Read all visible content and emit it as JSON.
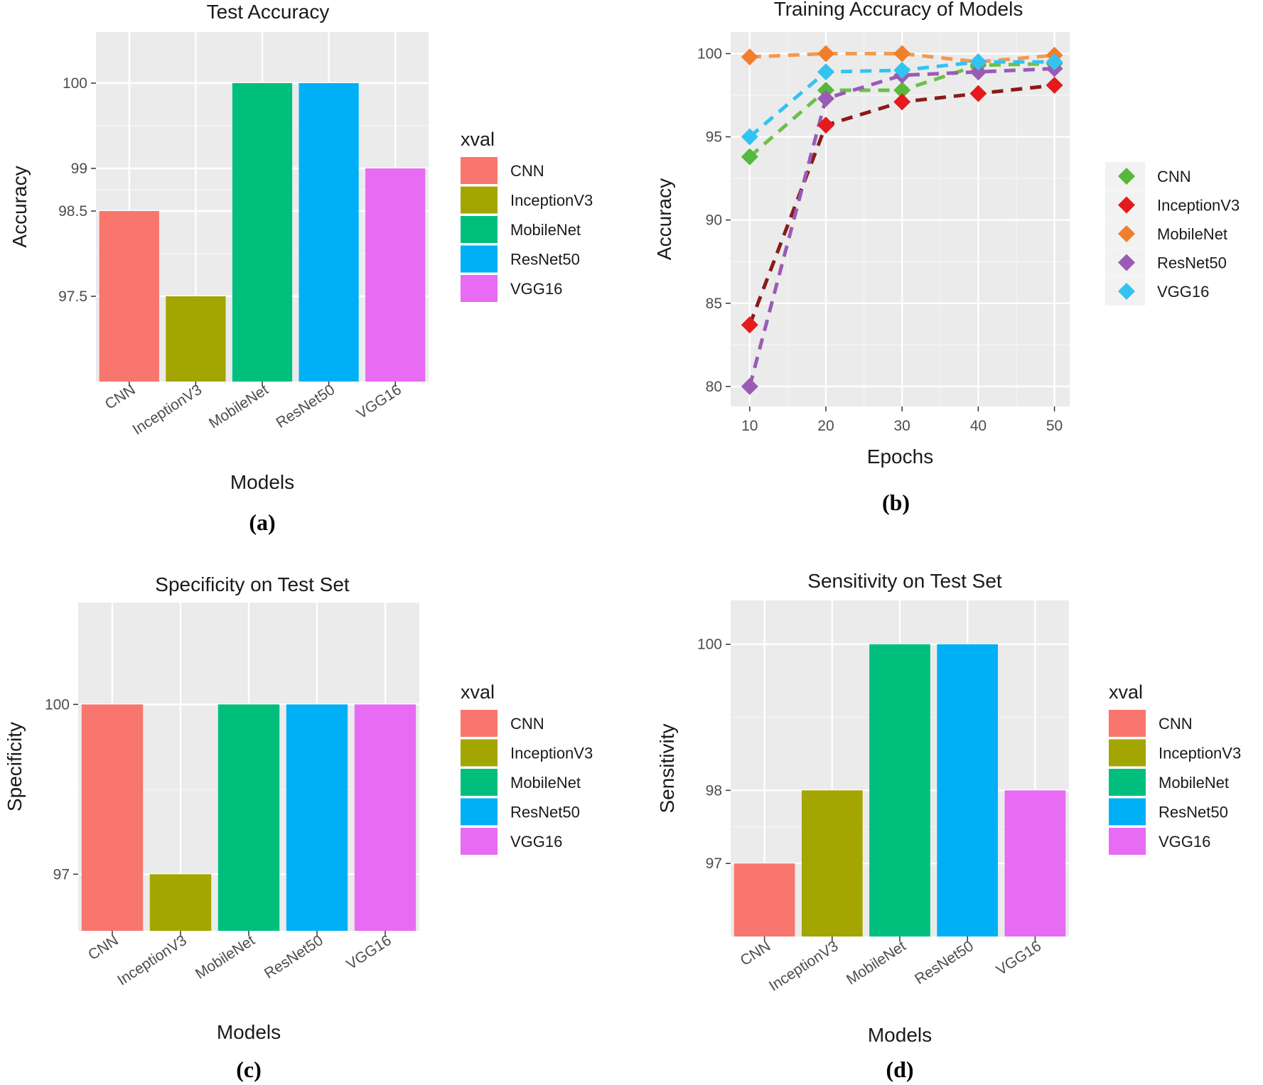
{
  "chart_data": [
    {
      "id": "a",
      "type": "bar",
      "panel_label": "(a)",
      "title": "Test Accuracy",
      "xlabel": "Models",
      "ylabel": "Accuracy",
      "categories": [
        "CNN",
        "InceptionV3",
        "MobileNet",
        "ResNet50",
        "VGG16"
      ],
      "values": [
        98.5,
        97.5,
        100,
        100,
        99
      ],
      "colors": [
        "#F8766D",
        "#A3A500",
        "#00BF7D",
        "#00B0F6",
        "#E76BF3"
      ],
      "ylim": [
        96.5,
        100.6
      ],
      "yticks": [
        97.5,
        98.5,
        99,
        100
      ],
      "ytick_labels": [
        "97.5",
        "98.5",
        "99",
        "100"
      ],
      "legend": {
        "title": "xval",
        "labels": [
          "CNN",
          "InceptionV3",
          "MobileNet",
          "ResNet50",
          "VGG16"
        ],
        "position": "right"
      }
    },
    {
      "id": "b",
      "type": "line",
      "panel_label": "(b)",
      "title": "Training Accuracy of Models",
      "xlabel": "Epochs",
      "ylabel": "Accuracy",
      "x": [
        10,
        20,
        30,
        40,
        50
      ],
      "xlim": [
        7.5,
        52
      ],
      "ylim": [
        78.8,
        101.3
      ],
      "xticks": [
        10,
        20,
        30,
        40,
        50
      ],
      "yticks": [
        80,
        85,
        90,
        95,
        100
      ],
      "series": [
        {
          "name": "CNN",
          "values": [
            93.8,
            97.8,
            97.8,
            99.3,
            99.4
          ],
          "color": "#56B83C",
          "line_color": "#6CC04A"
        },
        {
          "name": "InceptionV3",
          "values": [
            83.7,
            95.7,
            97.1,
            97.6,
            98.1
          ],
          "color": "#E41A1C",
          "line_color": "#8B1A1A"
        },
        {
          "name": "MobileNet",
          "values": [
            99.8,
            100,
            100,
            99.5,
            99.9
          ],
          "color": "#F07F2D",
          "line_color": "#F39A4E"
        },
        {
          "name": "ResNet50",
          "values": [
            80,
            97.3,
            98.7,
            98.9,
            99.1
          ],
          "color": "#9A5BB5",
          "line_color": "#9A5BB5"
        },
        {
          "name": "VGG16",
          "values": [
            95,
            98.9,
            99,
            99.5,
            99.5
          ],
          "color": "#33C3F0",
          "line_color": "#33C3F0"
        }
      ],
      "legend": {
        "title": "",
        "labels": [
          "CNN",
          "InceptionV3",
          "MobileNet",
          "ResNet50",
          "VGG16"
        ],
        "position": "right"
      }
    },
    {
      "id": "c",
      "type": "bar",
      "panel_label": "(c)",
      "title": "Specificity on Test Set",
      "xlabel": "Models",
      "ylabel": "Specificity",
      "categories": [
        "CNN",
        "InceptionV3",
        "MobileNet",
        "ResNet50",
        "VGG16"
      ],
      "values": [
        100,
        97,
        100,
        100,
        100
      ],
      "colors": [
        "#F8766D",
        "#A3A500",
        "#00BF7D",
        "#00B0F6",
        "#E76BF3"
      ],
      "ylim": [
        96,
        101.8
      ],
      "yticks": [
        97,
        100
      ],
      "ytick_labels": [
        "97",
        "100"
      ],
      "legend": {
        "title": "xval",
        "labels": [
          "CNN",
          "InceptionV3",
          "MobileNet",
          "ResNet50",
          "VGG16"
        ],
        "position": "right"
      }
    },
    {
      "id": "d",
      "type": "bar",
      "panel_label": "(d)",
      "title": "Sensitivity on Test Set",
      "xlabel": "Models",
      "ylabel": "Sensitivity",
      "categories": [
        "CNN",
        "InceptionV3",
        "MobileNet",
        "ResNet50",
        "VGG16"
      ],
      "values": [
        97,
        98,
        100,
        100,
        98
      ],
      "colors": [
        "#F8766D",
        "#A3A500",
        "#00BF7D",
        "#00B0F6",
        "#E76BF3"
      ],
      "ylim": [
        96.0,
        100.6
      ],
      "yticks": [
        97,
        98,
        100
      ],
      "ytick_labels": [
        "97",
        "98",
        "100"
      ],
      "legend": {
        "title": "xval",
        "labels": [
          "CNN",
          "InceptionV3",
          "MobileNet",
          "ResNet50",
          "VGG16"
        ],
        "position": "right"
      }
    }
  ]
}
